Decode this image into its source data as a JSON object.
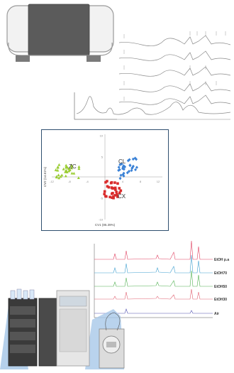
{
  "figure": {
    "panel_top": {
      "description_icon": "nmr-spectrometer-icon",
      "peak_marker": "∥",
      "spectra_count": 5,
      "inset_spectrum": true
    },
    "panel_pca": {
      "border_color": "#2f4f6f",
      "x_axis_label": "CV1 (85.39%)",
      "y_axis_label": "CV2 (14.61%)",
      "x_ticks": [
        "-12",
        "-8",
        "-4",
        "4",
        "8",
        "12"
      ],
      "y_ticks": [
        "10",
        "5",
        "-5",
        "-10"
      ],
      "groups": [
        {
          "label": "ZC",
          "shape": "triangle",
          "color": "#9acd32"
        },
        {
          "label": "CL",
          "shape": "diamond",
          "color": "#3b82d6"
        },
        {
          "label": "CX",
          "shape": "square",
          "color": "#d92b2b"
        }
      ]
    },
    "panel_bottom": {
      "instrument_icon": "lc-ms-instrument-icon",
      "traces": [
        {
          "label": "EtOH p.a",
          "color": "#e04060"
        },
        {
          "label": "EtOH70",
          "color": "#40a0d0"
        },
        {
          "label": "EtOH50",
          "color": "#50b050"
        },
        {
          "label": "EtOH30",
          "color": "#e06070"
        },
        {
          "label": "Air",
          "color": "#5050b0"
        }
      ]
    }
  }
}
